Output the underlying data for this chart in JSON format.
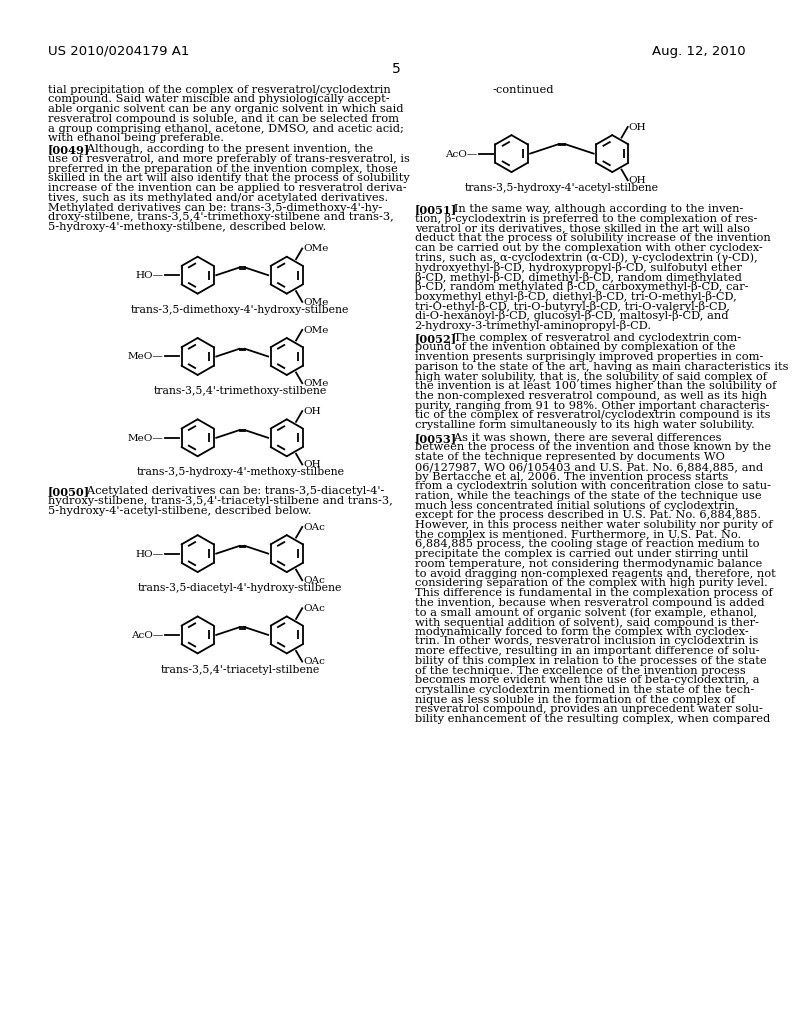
{
  "background_color": "#ffffff",
  "header_left": "US 2010/0204179 A1",
  "header_right": "Aug. 12, 2010",
  "page_number": "5",
  "left_col_lines": [
    "tial precipitation of the complex of resveratrol/cyclodextrin",
    "compound. Said water miscible and physiologically accept-",
    "able organic solvent can be any organic solvent in which said",
    "resveratrol compound is soluble, and it can be selected from",
    "a group comprising ethanol, acetone, DMSO, and acetic acid;",
    "with ethanol being preferable.",
    "PARA0049",
    "[0049]   Although, according to the present invention, the",
    "use of resveratrol, and more preferably of trans-resveratrol, is",
    "preferred in the preparation of the invention complex, those",
    "skilled in the art will also identify that the process of solubility",
    "increase of the invention can be applied to resveratrol deriva-",
    "tives, such as its methylated and/or acetylated derivatives.",
    "Methylated derivatives can be: trans-3,5-dimethoxy-4'-hy-",
    "droxy-stilbene, trans-3,5,4'-trimethoxy-stilbene and trans-3,",
    "5-hydroxy-4'-methoxy-stilbene, described below."
  ],
  "left_col_bottom_lines": [
    "PARA0050",
    "[0050]   Acetylated derivatives can be: trans-3,5-diacetyl-4'-",
    "hydroxy-stilbene, trans-3,5,4'-triacetyl-stilbene and trans-3,",
    "5-hydroxy-4'-acetyl-stilbene, described below."
  ],
  "right_col_para0051": [
    "[0051]   In the same way, although according to the inven-",
    "tion, β-cyclodextrin is preferred to the complexation of res-",
    "veratrol or its derivatives, those skilled in the art will also",
    "deduct that the process of solubility increase of the invention",
    "can be carried out by the complexation with other cyclodex-",
    "trins, such as, α-cyclodextrin (α-CD), γ-cyclodextrin (γ-CD),",
    "hydroxyethyl-β-CD, hydroxypropyl-β-CD, sulfobutyl ether",
    "β-CD, methyl-β-CD, dimethyl-β-CD, random dimethylated",
    "β-CD, random methylated β-CD, carboxymethyl-β-CD, car-",
    "boxymethyl ethyl-β-CD, diethyl-β-CD, tri-O-methyl-β-CD,",
    "tri-O-ethyl-β-CD, tri-O-butyryl-β-CD, tri-O-valeryl-β-CD,",
    "di-O-hexanoyl-β-CD, glucosyl-β-CD, maltosyl-β-CD, and",
    "2-hydroxy-3-trimethyl-aminopropyl-β-CD."
  ],
  "right_col_para0052": [
    "[0052]   The complex of resveratrol and cyclodextrin com-",
    "pound of the invention obtained by complexation of the",
    "invention presents surprisingly improved properties in com-",
    "parison to the state of the art, having as main characteristics its",
    "high water solubility, that is, the solubility of said complex of",
    "the invention is at least 100 times higher than the solubility of",
    "the non-complexed resveratrol compound, as well as its high",
    "purity, ranging from 91 to 98%. Other important characteris-",
    "tic of the complex of resveratrol/cyclodextrin compound is its",
    "crystalline form simultaneously to its high water solubility."
  ],
  "right_col_para0053": [
    "[0053]   As it was shown, there are several differences",
    "between the process of the invention and those known by the",
    "state of the technique represented by documents WO",
    "06/127987, WO 06/105403 and U.S. Pat. No. 6,884,885, and",
    "by Bertacche et al, 2006. The invention process starts",
    "from a cyclodextrin solution with concentration close to satu-",
    "ration, while the teachings of the state of the technique use",
    "much less concentrated initial solutions of cyclodextrin,",
    "except for the process described in U.S. Pat. No. 6,884,885.",
    "However, in this process neither water solubility nor purity of",
    "the complex is mentioned. Furthermore, in U.S. Pat. No.",
    "6,884,885 process, the cooling stage of reaction medium to",
    "precipitate the complex is carried out under stirring until",
    "room temperature, not considering thermodynamic balance",
    "to avoid dragging non-complexed reagents and, therefore, not",
    "considering separation of the complex with high purity level.",
    "This difference is fundamental in the complexation process of",
    "the invention, because when resveratrol compound is added",
    "to a small amount of organic solvent (for example, ethanol,",
    "with sequential addition of solvent), said compound is ther-",
    "modynamically forced to form the complex with cyclodex-",
    "trin. In other words, resveratrol inclusion in cyclodextrin is",
    "more effective, resulting in an important difference of solu-",
    "bility of this complex in relation to the processes of the state",
    "of the technique. The excellence of the invention process",
    "becomes more evident when the use of beta-cyclodextrin, a",
    "crystalline cyclodextrin mentioned in the state of the tech-",
    "nique as less soluble in the formation of the complex of",
    "resveratrol compound, provides an unprecedent water solu-",
    "bility enhancement of the resulting complex, when compared"
  ]
}
